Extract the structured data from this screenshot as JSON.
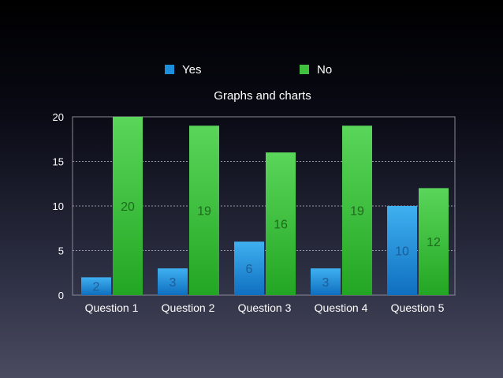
{
  "chart_data": {
    "type": "bar",
    "title": "Graphs and charts",
    "xlabel": "",
    "ylabel": "",
    "categories": [
      "Question 1",
      "Question 2",
      "Question 3",
      "Question 4",
      "Question 5"
    ],
    "series": [
      {
        "name": "Yes",
        "values": [
          2,
          3,
          6,
          3,
          10
        ],
        "color": "#1e8fdc",
        "label_color": "#1f5d97"
      },
      {
        "name": "No",
        "values": [
          20,
          19,
          16,
          19,
          12
        ],
        "color": "#3fc03f",
        "label_color": "#1e6b1e"
      }
    ],
    "ylim": [
      0,
      20
    ],
    "yticks": [
      0,
      5,
      10,
      15,
      20
    ],
    "grid": true,
    "legend_position": "top"
  }
}
